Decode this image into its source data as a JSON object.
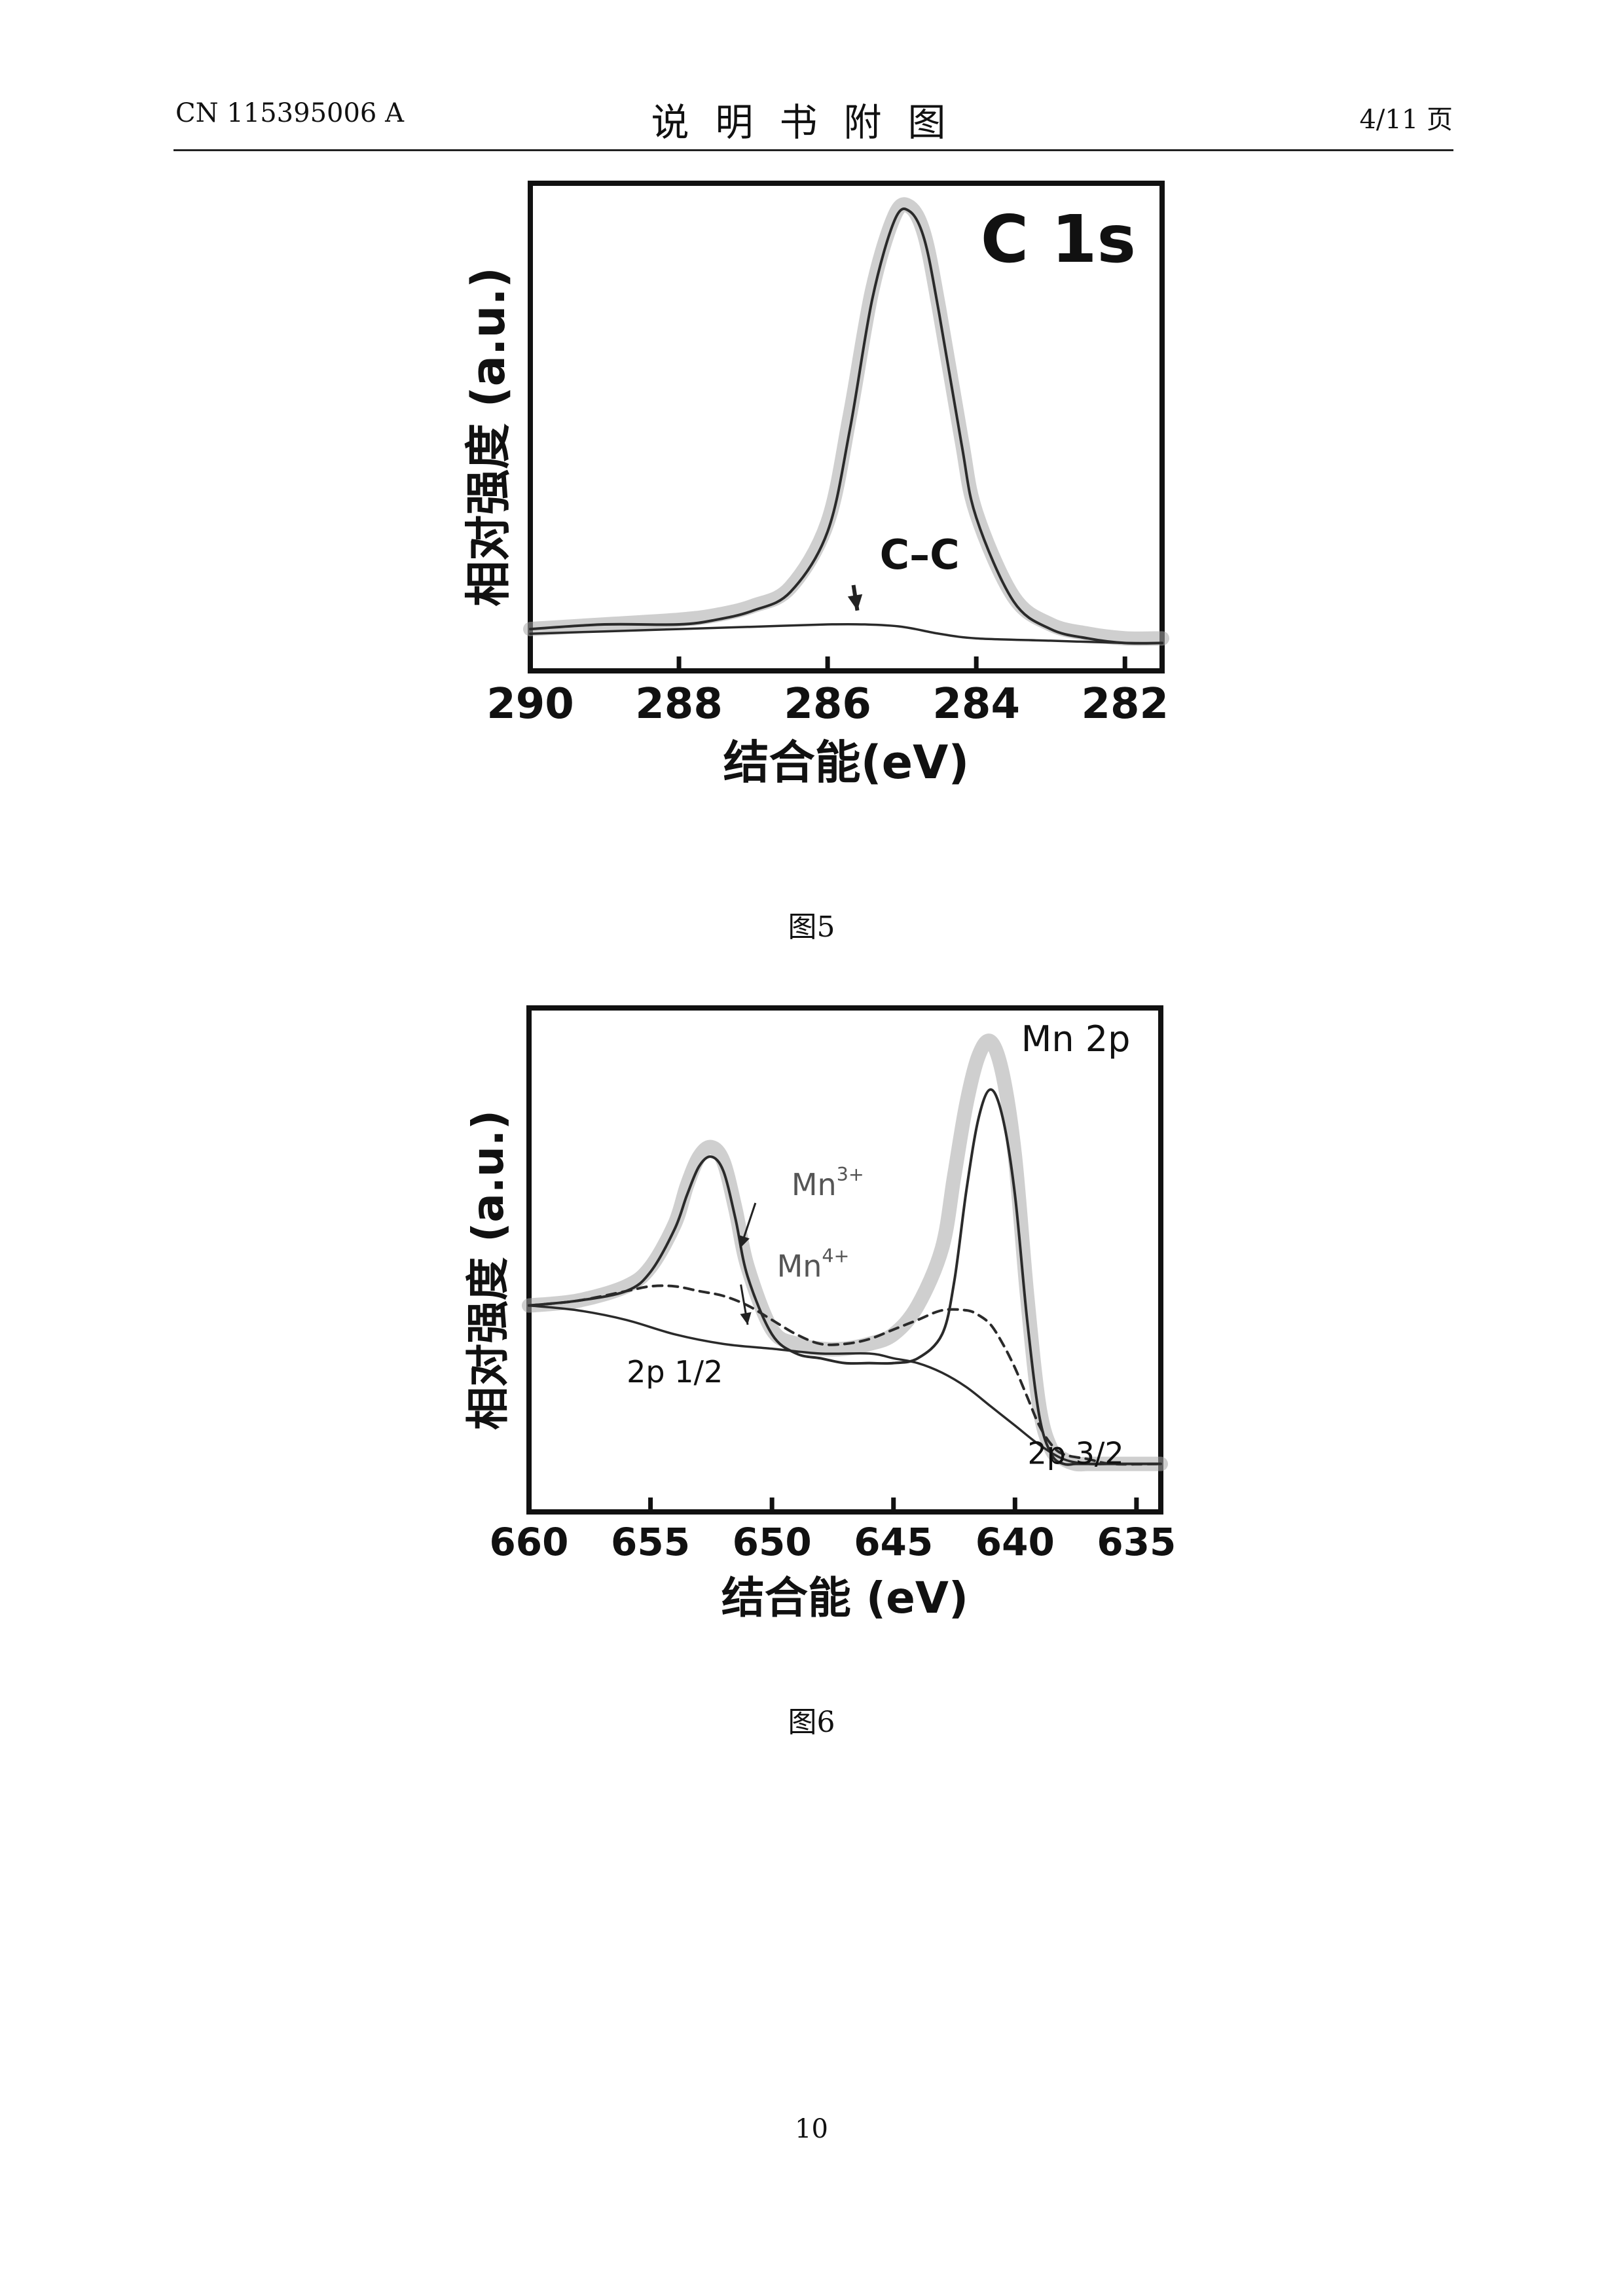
{
  "header": {
    "left": "CN 115395006 A",
    "center": "说明书附图",
    "right": "4/11 页"
  },
  "figures": [
    {
      "caption": "图5"
    },
    {
      "caption": "图6"
    }
  ],
  "page_number": "10",
  "chart_data": [
    {
      "type": "line",
      "title": "C 1s",
      "xlabel": "结合能(eV)",
      "ylabel": "相对强度 (a.u.)",
      "xlim": [
        290,
        281.5
      ],
      "x_reversed": true,
      "xticks": [
        290,
        288,
        286,
        284,
        282
      ],
      "xtick_labels": [
        "290",
        "288",
        "286",
        "284",
        "282"
      ],
      "ylim": [
        0,
        1.05
      ],
      "y_ticks_shown": false,
      "grid": false,
      "annotations": [
        {
          "text": "C–C",
          "x": 285.3,
          "y": 0.22,
          "arrow_to": [
            285.6,
            0.13
          ]
        }
      ],
      "series": [
        {
          "role": "raw-data",
          "x": [
            290,
            289,
            288,
            287.5,
            287,
            286.5,
            286,
            285.7,
            285.4,
            285.1,
            284.9,
            284.7,
            284.5,
            284.2,
            284,
            283.5,
            283,
            282.5,
            282,
            281.5
          ],
          "y": [
            0.09,
            0.1,
            0.11,
            0.12,
            0.14,
            0.18,
            0.32,
            0.55,
            0.82,
            0.98,
            1.0,
            0.94,
            0.78,
            0.5,
            0.34,
            0.16,
            0.1,
            0.08,
            0.07,
            0.07
          ]
        },
        {
          "role": "fit-c-c",
          "x": [
            290,
            289,
            288,
            287.5,
            287,
            286.5,
            286,
            285.7,
            285.4,
            285.1,
            284.9,
            284.7,
            284.5,
            284.2,
            284,
            283.5,
            283,
            282.5,
            282,
            281.5
          ],
          "y": [
            0.09,
            0.1,
            0.1,
            0.11,
            0.13,
            0.17,
            0.3,
            0.52,
            0.8,
            0.97,
            0.99,
            0.93,
            0.77,
            0.49,
            0.33,
            0.15,
            0.09,
            0.07,
            0.06,
            0.06
          ]
        },
        {
          "role": "background",
          "x": [
            290,
            289,
            288,
            287,
            286,
            285.5,
            285,
            284.5,
            284,
            283,
            282,
            281.5
          ],
          "y": [
            0.08,
            0.085,
            0.09,
            0.095,
            0.1,
            0.1,
            0.095,
            0.08,
            0.07,
            0.065,
            0.06,
            0.06
          ]
        }
      ]
    },
    {
      "type": "line",
      "title": "Mn 2p",
      "xlabel": "结合能 (eV)",
      "ylabel": "相对强度 (a.u.)",
      "xlim": [
        660,
        634
      ],
      "x_reversed": true,
      "xticks": [
        660,
        655,
        650,
        645,
        640,
        635
      ],
      "xtick_labels": [
        "660",
        "655",
        "650",
        "645",
        "640",
        "635"
      ],
      "ylim": [
        0,
        1.05
      ],
      "y_ticks_shown": false,
      "grid": false,
      "annotations": [
        {
          "text": "Mn",
          "sup": "3+",
          "x": 649.2,
          "y": 0.66,
          "arrow_to": [
            651.3,
            0.55
          ]
        },
        {
          "text": "Mn",
          "sup": "4+",
          "x": 649.8,
          "y": 0.49,
          "arrow_to": [
            651.0,
            0.39
          ]
        },
        {
          "text": "2p 1/2",
          "x": 654.0,
          "y": 0.27
        },
        {
          "text": "2p 3/2",
          "x": 637.5,
          "y": 0.1
        },
        {
          "text": "Mn 2p",
          "x": 637.5,
          "y": 0.96
        }
      ],
      "series": [
        {
          "role": "raw-data",
          "x": [
            660,
            658,
            656,
            655,
            654,
            653.5,
            653,
            652.5,
            652,
            651.5,
            651,
            650,
            649,
            648,
            647,
            646,
            645,
            644,
            643,
            642.5,
            642,
            641.5,
            641,
            640.5,
            640,
            639.5,
            639,
            638.5,
            638,
            637.5,
            637,
            636,
            634
          ],
          "y": [
            0.43,
            0.44,
            0.47,
            0.51,
            0.6,
            0.68,
            0.74,
            0.76,
            0.73,
            0.63,
            0.51,
            0.38,
            0.35,
            0.34,
            0.34,
            0.35,
            0.37,
            0.43,
            0.55,
            0.7,
            0.85,
            0.95,
            0.98,
            0.91,
            0.74,
            0.45,
            0.22,
            0.13,
            0.11,
            0.1,
            0.1,
            0.1,
            0.1
          ]
        },
        {
          "role": "fit-mn3",
          "x": [
            660,
            658,
            656,
            655,
            654,
            653.5,
            653,
            652.5,
            652,
            651.5,
            651,
            650,
            649,
            648,
            647,
            646,
            645,
            644,
            643,
            642.5,
            642,
            641.5,
            641,
            640.5,
            640,
            639.5,
            639,
            638.5,
            638,
            637.5,
            637,
            636,
            634
          ],
          "y": [
            0.43,
            0.44,
            0.46,
            0.5,
            0.59,
            0.66,
            0.72,
            0.74,
            0.71,
            0.61,
            0.49,
            0.37,
            0.33,
            0.32,
            0.31,
            0.31,
            0.31,
            0.32,
            0.37,
            0.48,
            0.67,
            0.82,
            0.88,
            0.82,
            0.66,
            0.4,
            0.2,
            0.12,
            0.1,
            0.1,
            0.1,
            0.1,
            0.1
          ]
        },
        {
          "role": "fit-mn4",
          "x": [
            660,
            658,
            656,
            655,
            654,
            653,
            652,
            651,
            650,
            649,
            648,
            647,
            646,
            645,
            644,
            643,
            642,
            641.5,
            641,
            640.5,
            640,
            639.5,
            639,
            638.5,
            638,
            637,
            636,
            634
          ],
          "y": [
            0.43,
            0.44,
            0.46,
            0.47,
            0.47,
            0.46,
            0.45,
            0.43,
            0.4,
            0.37,
            0.35,
            0.35,
            0.36,
            0.38,
            0.4,
            0.42,
            0.42,
            0.41,
            0.39,
            0.35,
            0.3,
            0.24,
            0.18,
            0.14,
            0.12,
            0.11,
            0.1,
            0.1
          ]
        },
        {
          "role": "background",
          "x": [
            660,
            658,
            656,
            654,
            652,
            650,
            648,
            646,
            645,
            644,
            643,
            642,
            641,
            640,
            639,
            638,
            637,
            636,
            634
          ],
          "y": [
            0.43,
            0.42,
            0.4,
            0.37,
            0.35,
            0.34,
            0.33,
            0.33,
            0.32,
            0.31,
            0.29,
            0.26,
            0.22,
            0.18,
            0.14,
            0.11,
            0.1,
            0.1,
            0.1
          ]
        }
      ]
    }
  ]
}
